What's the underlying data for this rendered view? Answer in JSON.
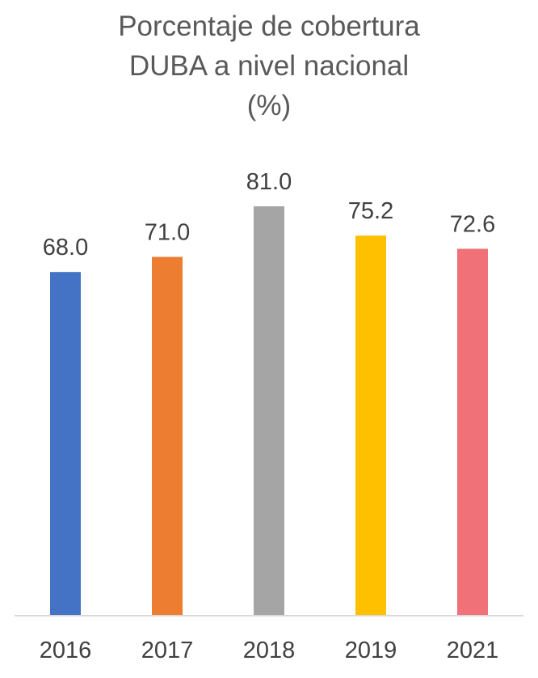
{
  "chart_data": {
    "type": "bar",
    "title_lines": [
      "Porcentaje de cobertura",
      "DUBA a nivel nacional",
      "(%)"
    ],
    "categories": [
      "2016",
      "2017",
      "2018",
      "2019",
      "2021"
    ],
    "values": [
      68.0,
      71.0,
      81.0,
      75.2,
      72.6
    ],
    "data_labels": [
      "68.0",
      "71.0",
      "81.0",
      "75.2",
      "72.6"
    ],
    "colors": [
      "#4472C4",
      "#ED7D31",
      "#A5A5A5",
      "#FFC000",
      "#F07178"
    ],
    "xlabel": "",
    "ylabel": "",
    "ylim": [
      0,
      81
    ],
    "grid": false,
    "legend": "none"
  }
}
